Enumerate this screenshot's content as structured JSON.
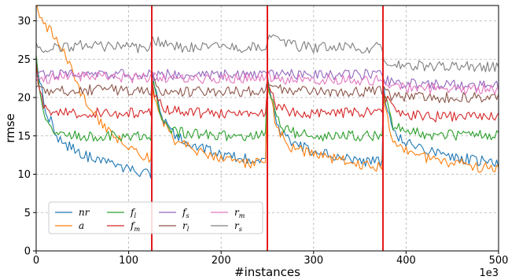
{
  "chart_data": {
    "type": "line",
    "xlabel": "#instances",
    "ylabel": "rmse",
    "x_offset_text": "1e3",
    "xlim": [
      0,
      500
    ],
    "ylim": [
      0,
      32
    ],
    "x_ticks": [
      0,
      100,
      200,
      300,
      400,
      500
    ],
    "y_ticks": [
      0,
      5,
      10,
      15,
      20,
      25,
      30
    ],
    "grid": true,
    "legend_position": "lower-left",
    "change_points_x": [
      125,
      250,
      375
    ],
    "change_point_color": "#e31a1c",
    "series": [
      {
        "key": "nr",
        "main": "nr",
        "sub": "",
        "color": "#1f77b4",
        "x": [
          0,
          10,
          25,
          50,
          75,
          100,
          124,
          125,
          135,
          150,
          175,
          200,
          225,
          249,
          250,
          260,
          275,
          300,
          325,
          350,
          374,
          375,
          385,
          400,
          425,
          450,
          475,
          500
        ],
        "y": [
          25,
          18.5,
          14.5,
          12.5,
          11.5,
          10.5,
          10,
          23,
          17.5,
          15,
          13.5,
          12.5,
          12,
          12,
          23,
          16.5,
          14.2,
          13,
          12.3,
          11.8,
          11.5,
          21.5,
          15.5,
          14,
          13,
          12.3,
          11.8,
          11.5
        ]
      },
      {
        "key": "a",
        "main": "a",
        "sub": "",
        "color": "#ff7f0e",
        "x": [
          0,
          5,
          10,
          20,
          30,
          50,
          75,
          100,
          124,
          125,
          135,
          150,
          175,
          200,
          225,
          249,
          250,
          260,
          275,
          300,
          325,
          350,
          374,
          375,
          385,
          400,
          425,
          450,
          475,
          500
        ],
        "y": [
          32,
          30,
          29.5,
          28,
          26,
          20,
          16,
          13.5,
          12,
          22,
          17,
          14.5,
          13,
          12,
          11.5,
          11.5,
          22,
          16,
          13.5,
          12.5,
          12,
          11.3,
          11,
          21,
          14.5,
          13,
          12,
          11.5,
          11,
          10.7
        ]
      },
      {
        "key": "fl",
        "main": "f",
        "sub": "l",
        "color": "#2ca02c",
        "x": [
          0,
          5,
          10,
          20,
          30,
          40,
          60,
          100,
          124,
          125,
          135,
          150,
          175,
          200,
          249,
          250,
          260,
          275,
          300,
          374,
          375,
          385,
          400,
          425,
          500
        ],
        "y": [
          25,
          20,
          16.5,
          15.5,
          15.2,
          15,
          15,
          15,
          15,
          22.5,
          17,
          15.5,
          15.2,
          15,
          15,
          22.5,
          17,
          15.5,
          15,
          15,
          21,
          16.5,
          15.5,
          15.2,
          15
        ]
      },
      {
        "key": "fm",
        "main": "f",
        "sub": "m",
        "color": "#d62728",
        "x": [
          0,
          5,
          10,
          25,
          50,
          100,
          124,
          125,
          135,
          150,
          175,
          249,
          250,
          260,
          275,
          300,
          374,
          375,
          385,
          400,
          425,
          500
        ],
        "y": [
          24,
          20,
          18.5,
          18,
          18,
          18,
          18,
          21.5,
          18.8,
          18.2,
          18,
          18,
          22,
          19,
          18,
          18,
          18,
          20.5,
          18.5,
          17.8,
          17.5,
          17.5
        ]
      },
      {
        "key": "fs",
        "main": "f",
        "sub": "s",
        "color": "#9467bd",
        "x": [
          0,
          10,
          25,
          50,
          100,
          124,
          125,
          150,
          200,
          249,
          250,
          260,
          300,
          374,
          375,
          385,
          400,
          500
        ],
        "y": [
          23,
          23,
          23,
          23.2,
          23,
          23,
          23,
          23,
          23,
          23,
          23,
          23,
          23,
          23,
          22.5,
          22,
          21.8,
          21.5
        ]
      },
      {
        "key": "rl",
        "main": "r",
        "sub": "l",
        "color": "#8c564b",
        "x": [
          0,
          5,
          10,
          25,
          50,
          100,
          124,
          125,
          135,
          150,
          200,
          249,
          250,
          260,
          275,
          300,
          374,
          375,
          385,
          400,
          425,
          500
        ],
        "y": [
          22,
          21,
          20.8,
          20.8,
          21,
          21,
          21,
          22,
          21,
          20.8,
          20.8,
          20.8,
          22.5,
          21.2,
          21,
          20.8,
          20.8,
          21,
          20.2,
          20,
          20,
          20
        ]
      },
      {
        "key": "rm",
        "main": "r",
        "sub": "m",
        "color": "#e377c2",
        "x": [
          0,
          10,
          25,
          50,
          100,
          124,
          125,
          150,
          200,
          249,
          250,
          260,
          300,
          374,
          375,
          385,
          400,
          500
        ],
        "y": [
          22.5,
          22.5,
          22.6,
          22.8,
          22.6,
          22.5,
          22.8,
          22.5,
          22.5,
          22.5,
          22.8,
          22.4,
          22.3,
          22.3,
          22,
          21.5,
          21.2,
          21
        ]
      },
      {
        "key": "rs",
        "main": "r",
        "sub": "s",
        "color": "#7f7f7f",
        "x": [
          0,
          5,
          10,
          25,
          50,
          100,
          124,
          125,
          150,
          200,
          249,
          250,
          275,
          300,
          374,
          375,
          400,
          500
        ],
        "y": [
          27.5,
          26.5,
          26.3,
          26.5,
          26.8,
          26.5,
          26.5,
          27.5,
          26.6,
          26.5,
          26.5,
          27.8,
          26.8,
          26.5,
          26.5,
          24.5,
          24.2,
          24
        ]
      }
    ]
  }
}
